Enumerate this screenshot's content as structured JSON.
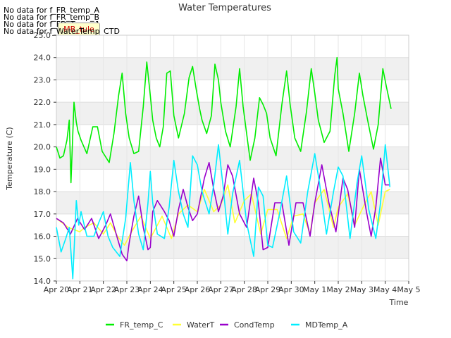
{
  "nodata_messages": [
    "No data for f_FR_temp_A",
    "No data for f_FR_temp_B",
    "No data for f_FD_Temp_1",
    "No data for f_WaterTemp_CTD"
  ],
  "tag_label": "MB_tule",
  "colors": {
    "FR_temp_C": "#00ee00",
    "WaterT": "#ffff33",
    "CondTemp": "#9900cc",
    "MDTemp_A": "#00eeff"
  },
  "chart_data": {
    "type": "line",
    "title": "Water Temperatures",
    "xlabel": "Time",
    "ylabel": "Temperature (C)",
    "ylim": [
      14.0,
      25.0
    ],
    "xlim": [
      0,
      15
    ],
    "x_ticks": [
      "Apr 20",
      "Apr 21",
      "Apr 22",
      "Apr 23",
      "Apr 24",
      "Apr 25",
      "Apr 26",
      "Apr 27",
      "Apr 28",
      "Apr 29",
      "Apr 30",
      "May 1",
      "May 2",
      "May 3",
      "May 4",
      "May 5"
    ],
    "y_ticks": [
      "14.0",
      "15.0",
      "16.0",
      "17.0",
      "18.0",
      "19.0",
      "20.0",
      "21.0",
      "22.0",
      "23.0",
      "24.0",
      "25.0"
    ],
    "grid": true,
    "legend_position": "bottom",
    "series": [
      {
        "name": "FR_temp_C",
        "color": "#00ee00",
        "x": [
          0.0,
          0.15,
          0.3,
          0.45,
          0.55,
          0.62,
          0.75,
          0.85,
          0.92,
          1.05,
          1.3,
          1.55,
          1.75,
          1.95,
          2.25,
          2.45,
          2.65,
          2.8,
          2.95,
          3.1,
          3.3,
          3.5,
          3.7,
          3.85,
          4.0,
          4.1,
          4.25,
          4.4,
          4.55,
          4.7,
          4.85,
          5.0,
          5.2,
          5.45,
          5.65,
          5.8,
          5.95,
          6.1,
          6.2,
          6.4,
          6.6,
          6.75,
          6.9,
          7.0,
          7.2,
          7.4,
          7.65,
          7.8,
          7.95,
          8.05,
          8.25,
          8.45,
          8.65,
          8.8,
          8.95,
          9.1,
          9.35,
          9.6,
          9.8,
          9.95,
          10.15,
          10.4,
          10.65,
          10.85,
          11.0,
          11.15,
          11.4,
          11.65,
          11.85,
          11.95,
          12.0,
          12.2,
          12.45,
          12.7,
          12.9,
          13.05,
          13.25,
          13.5,
          13.7,
          13.9,
          14.05,
          14.25
        ],
        "y": [
          20.0,
          19.5,
          19.6,
          20.3,
          21.2,
          18.4,
          22.0,
          21.1,
          20.7,
          20.3,
          19.7,
          20.9,
          20.9,
          19.8,
          19.3,
          20.6,
          22.3,
          23.3,
          21.5,
          20.4,
          19.7,
          19.8,
          21.8,
          23.8,
          22.3,
          21.2,
          20.4,
          20.0,
          20.9,
          23.3,
          23.4,
          21.4,
          20.4,
          21.5,
          23.1,
          23.6,
          22.6,
          21.7,
          21.2,
          20.6,
          21.4,
          23.7,
          23.0,
          22.0,
          20.7,
          20.0,
          21.8,
          23.5,
          21.8,
          21.0,
          19.4,
          20.4,
          22.2,
          21.9,
          21.5,
          20.4,
          19.6,
          21.9,
          23.4,
          21.9,
          20.4,
          19.8,
          21.6,
          23.5,
          22.4,
          21.2,
          20.2,
          20.7,
          23.2,
          24.0,
          22.6,
          21.5,
          19.8,
          21.5,
          23.3,
          22.3,
          21.2,
          19.9,
          21.0,
          23.5,
          22.7,
          21.7
        ]
      },
      {
        "name": "WaterT",
        "color": "#ffff33",
        "x": [
          0.0,
          0.5,
          1.0,
          1.2,
          1.6,
          2.0,
          2.3,
          2.6,
          2.9,
          3.2,
          3.6,
          4.0,
          4.5,
          4.9,
          5.2,
          5.6,
          6.0,
          6.3,
          6.7,
          7.0,
          7.3,
          7.6,
          8.0,
          8.3,
          8.7,
          9.0,
          9.4,
          9.8,
          10.1,
          10.5,
          10.8,
          11.0,
          11.4,
          11.8,
          12.0,
          12.4,
          12.7,
          13.1,
          13.4,
          13.7,
          14.0,
          14.2
        ],
        "y": [
          16.8,
          16.4,
          16.2,
          16.4,
          16.6,
          16.1,
          16.6,
          16.0,
          15.6,
          16.2,
          16.9,
          15.9,
          16.9,
          15.9,
          17.0,
          17.4,
          17.1,
          18.1,
          17.1,
          17.4,
          18.3,
          16.6,
          17.6,
          17.9,
          16.1,
          17.2,
          17.2,
          15.9,
          16.9,
          17.0,
          16.1,
          17.5,
          18.1,
          16.4,
          17.3,
          17.9,
          16.5,
          17.4,
          18.0,
          16.5,
          18.0,
          18.1
        ]
      },
      {
        "name": "CondTemp",
        "color": "#9900cc",
        "x": [
          0.0,
          0.3,
          0.6,
          0.9,
          1.2,
          1.5,
          1.8,
          2.1,
          2.3,
          2.6,
          2.8,
          3.0,
          3.1,
          3.3,
          3.5,
          3.7,
          3.9,
          4.0,
          4.1,
          4.3,
          4.6,
          4.8,
          5.0,
          5.2,
          5.4,
          5.6,
          5.8,
          6.0,
          6.3,
          6.5,
          6.7,
          6.9,
          7.1,
          7.3,
          7.5,
          7.8,
          8.1,
          8.4,
          8.6,
          8.8,
          9.0,
          9.3,
          9.6,
          9.9,
          10.2,
          10.5,
          10.8,
          11.0,
          11.3,
          11.6,
          11.9,
          12.2,
          12.4,
          12.7,
          12.9,
          13.2,
          13.4,
          13.6,
          13.8,
          14.0,
          14.2
        ],
        "y": [
          16.8,
          16.6,
          16.1,
          16.8,
          16.3,
          16.8,
          15.9,
          16.5,
          17.0,
          15.9,
          15.2,
          14.9,
          15.7,
          16.9,
          17.8,
          16.4,
          15.4,
          15.5,
          17.1,
          17.6,
          17.1,
          16.7,
          16.0,
          17.2,
          18.1,
          17.3,
          16.7,
          17.0,
          18.6,
          19.3,
          18.1,
          17.1,
          17.8,
          19.2,
          18.7,
          17.0,
          16.4,
          18.6,
          17.5,
          15.4,
          15.5,
          17.5,
          17.5,
          15.6,
          17.5,
          17.5,
          16.0,
          17.5,
          19.2,
          17.5,
          16.2,
          18.6,
          18.1,
          16.4,
          19.0,
          17.1,
          16.0,
          17.3,
          19.5,
          18.3,
          18.3
        ]
      },
      {
        "name": "MDTemp_A",
        "color": "#00eeff",
        "x": [
          0.0,
          0.2,
          0.4,
          0.55,
          0.7,
          0.85,
          0.95,
          1.05,
          1.3,
          1.6,
          1.8,
          2.0,
          2.2,
          2.4,
          2.7,
          2.95,
          3.15,
          3.3,
          3.5,
          3.7,
          3.9,
          4.0,
          4.1,
          4.3,
          4.6,
          4.8,
          5.0,
          5.2,
          5.4,
          5.6,
          5.8,
          6.0,
          6.2,
          6.5,
          6.7,
          6.9,
          7.1,
          7.3,
          7.5,
          7.8,
          8.1,
          8.4,
          8.6,
          8.8,
          9.0,
          9.2,
          9.5,
          9.8,
          10.1,
          10.4,
          10.7,
          11.0,
          11.2,
          11.5,
          11.8,
          12.0,
          12.2,
          12.5,
          12.8,
          13.0,
          13.3,
          13.6,
          13.8,
          14.0,
          14.2
        ],
        "y": [
          16.4,
          15.3,
          15.9,
          16.4,
          14.1,
          17.6,
          16.5,
          17.1,
          16.0,
          16.0,
          16.6,
          17.1,
          16.0,
          15.5,
          15.1,
          16.8,
          19.3,
          17.6,
          16.1,
          15.4,
          17.5,
          18.9,
          17.5,
          16.1,
          15.9,
          17.3,
          19.4,
          18.0,
          17.0,
          16.4,
          19.6,
          19.2,
          18.0,
          17.0,
          18.3,
          20.1,
          18.2,
          16.1,
          17.9,
          19.4,
          16.6,
          15.1,
          18.2,
          17.8,
          15.6,
          15.5,
          17.0,
          18.7,
          16.2,
          15.7,
          18.0,
          19.7,
          18.4,
          16.1,
          18.0,
          19.1,
          18.7,
          15.9,
          18.4,
          19.6,
          17.2,
          15.9,
          17.5,
          20.1,
          18.2
        ]
      }
    ]
  }
}
